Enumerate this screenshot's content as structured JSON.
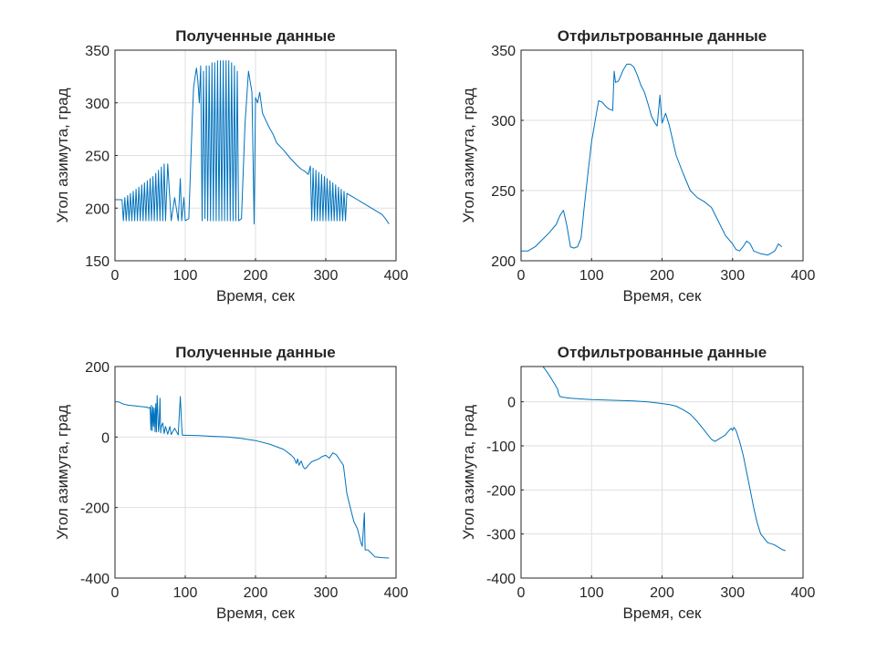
{
  "chart_data": [
    {
      "type": "line",
      "title": "Полученные данные",
      "xlabel": "Время, сек",
      "ylabel": "Угол азимута, град",
      "xlim": [
        0,
        400
      ],
      "ylim": [
        150,
        350
      ],
      "xticks": [
        0,
        100,
        200,
        300,
        400
      ],
      "yticks": [
        150,
        200,
        250,
        300,
        350
      ],
      "grid": true,
      "color": "#0072BD",
      "series": [
        {
          "x": [
            0,
            5,
            10,
            12,
            14,
            16,
            18,
            20,
            22,
            24,
            26,
            28,
            30,
            32,
            34,
            36,
            38,
            40,
            42,
            44,
            46,
            48,
            50,
            52,
            54,
            56,
            58,
            60,
            62,
            64,
            66,
            68,
            70,
            72,
            75,
            80,
            85,
            90,
            93,
            95,
            98,
            100,
            105,
            110,
            112,
            114,
            116,
            118,
            120,
            122,
            124,
            126,
            128,
            130,
            132,
            134,
            136,
            138,
            140,
            142,
            144,
            146,
            148,
            150,
            152,
            154,
            156,
            158,
            160,
            162,
            164,
            166,
            168,
            170,
            172,
            174,
            176,
            180,
            185,
            190,
            195,
            198,
            200,
            203,
            206,
            210,
            215,
            220,
            225,
            230,
            240,
            250,
            260,
            265,
            270,
            275,
            278,
            280,
            282,
            284,
            286,
            288,
            290,
            292,
            294,
            296,
            298,
            300,
            302,
            304,
            306,
            308,
            310,
            312,
            314,
            316,
            318,
            320,
            322,
            324,
            326,
            328,
            330,
            335,
            340,
            345,
            350,
            355,
            360,
            365,
            370,
            375,
            380,
            385,
            390
          ],
          "y": [
            208,
            208,
            208,
            188,
            210,
            188,
            212,
            188,
            214,
            188,
            216,
            188,
            218,
            188,
            220,
            188,
            222,
            188,
            224,
            188,
            226,
            188,
            228,
            188,
            230,
            188,
            233,
            188,
            236,
            188,
            239,
            188,
            242,
            188,
            242,
            188,
            210,
            188,
            228,
            188,
            210,
            188,
            190,
            285,
            315,
            325,
            333,
            320,
            300,
            335,
            188,
            330,
            190,
            335,
            188,
            335,
            188,
            338,
            188,
            338,
            188,
            340,
            188,
            340,
            188,
            340,
            188,
            340,
            188,
            340,
            188,
            338,
            188,
            335,
            188,
            330,
            188,
            190,
            280,
            330,
            310,
            185,
            305,
            300,
            310,
            290,
            283,
            276,
            270,
            262,
            255,
            247,
            240,
            237,
            235,
            232,
            240,
            188,
            238,
            188,
            236,
            188,
            234,
            188,
            232,
            188,
            230,
            188,
            228,
            188,
            226,
            188,
            224,
            188,
            222,
            188,
            220,
            188,
            218,
            188,
            216,
            188,
            214,
            212,
            210,
            208,
            206,
            204,
            202,
            200,
            198,
            196,
            194,
            190,
            185
          ]
        }
      ]
    },
    {
      "type": "line",
      "title": "Отфильтрованные данные",
      "xlabel": "Время, сек",
      "ylabel": "Угол азимута, град",
      "xlim": [
        0,
        400
      ],
      "ylim": [
        200,
        350
      ],
      "xticks": [
        0,
        100,
        200,
        300,
        400
      ],
      "yticks": [
        200,
        250,
        300,
        350
      ],
      "grid": true,
      "color": "#0072BD",
      "series": [
        {
          "x": [
            0,
            10,
            20,
            30,
            40,
            50,
            55,
            60,
            65,
            70,
            75,
            80,
            85,
            90,
            95,
            100,
            110,
            115,
            120,
            125,
            130,
            132,
            134,
            138,
            140,
            145,
            150,
            155,
            160,
            165,
            170,
            175,
            180,
            185,
            190,
            193,
            197,
            200,
            205,
            210,
            220,
            230,
            240,
            250,
            260,
            270,
            280,
            290,
            300,
            305,
            310,
            315,
            320,
            325,
            330,
            335,
            340,
            350,
            360,
            365,
            370
          ],
          "y": [
            207,
            207,
            210,
            215,
            220,
            226,
            232,
            236,
            225,
            210,
            209,
            210,
            216,
            240,
            263,
            285,
            314,
            313,
            310,
            308,
            307,
            335,
            327,
            328,
            330,
            336,
            340,
            340,
            338,
            332,
            325,
            320,
            312,
            303,
            298,
            296,
            318,
            298,
            305,
            297,
            275,
            262,
            250,
            245,
            242,
            238,
            228,
            218,
            212,
            208,
            207,
            210,
            214,
            212,
            207,
            206,
            205,
            204,
            207,
            212,
            210
          ]
        }
      ]
    },
    {
      "type": "line",
      "title": "Полученные данные",
      "xlabel": "Время, сек",
      "ylabel": "Угол азимута, град",
      "xlim": [
        0,
        400
      ],
      "ylim": [
        -400,
        200
      ],
      "xticks": [
        0,
        100,
        200,
        300,
        400
      ],
      "yticks": [
        -400,
        -200,
        0,
        200
      ],
      "grid": true,
      "color": "#0072BD",
      "series": [
        {
          "x": [
            0,
            5,
            10,
            15,
            20,
            25,
            30,
            35,
            40,
            45,
            48,
            50,
            51,
            52,
            53,
            54,
            55,
            56,
            57,
            58,
            59,
            60,
            62,
            63,
            64,
            65,
            66,
            68,
            70,
            72,
            75,
            78,
            80,
            85,
            90,
            93,
            95,
            96,
            100,
            120,
            140,
            160,
            180,
            200,
            220,
            240,
            250,
            255,
            258,
            260,
            262,
            265,
            268,
            270,
            272,
            275,
            280,
            290,
            295,
            300,
            305,
            310,
            315,
            320,
            325,
            330,
            335,
            340,
            345,
            350,
            352,
            355,
            356,
            360,
            365,
            370,
            380,
            390
          ],
          "y": [
            100,
            100,
            95,
            92,
            90,
            89,
            88,
            87,
            86,
            85,
            82,
            85,
            20,
            90,
            18,
            85,
            30,
            82,
            15,
            95,
            14,
            118,
            15,
            40,
            110,
            12,
            30,
            40,
            10,
            30,
            8,
            30,
            7,
            25,
            6,
            115,
            30,
            5,
            5,
            4,
            2,
            0,
            -4,
            -10,
            -20,
            -35,
            -50,
            -60,
            -75,
            -62,
            -80,
            -68,
            -85,
            -90,
            -88,
            -80,
            -70,
            -62,
            -55,
            -52,
            -60,
            -45,
            -50,
            -65,
            -80,
            -160,
            -200,
            -240,
            -260,
            -300,
            -310,
            -215,
            -320,
            -320,
            -330,
            -340,
            -342,
            -343
          ]
        }
      ]
    },
    {
      "type": "line",
      "title": "Отфильтрованные данные",
      "xlabel": "Время, сек",
      "ylabel": "Угол азимута, град",
      "xlim": [
        0,
        400
      ],
      "ylim": [
        -400,
        80
      ],
      "xticks": [
        0,
        100,
        200,
        300,
        400
      ],
      "yticks": [
        -400,
        -300,
        -200,
        -100,
        0
      ],
      "grid": true,
      "color": "#0072BD",
      "series": [
        {
          "x": [
            30,
            35,
            40,
            45,
            50,
            52,
            53,
            55,
            60,
            70,
            80,
            100,
            120,
            140,
            160,
            170,
            180,
            190,
            200,
            210,
            220,
            230,
            240,
            250,
            260,
            270,
            275,
            280,
            290,
            295,
            298,
            300,
            302,
            305,
            310,
            315,
            320,
            325,
            330,
            335,
            340,
            345,
            350,
            355,
            360,
            365,
            370,
            375
          ],
          "y": [
            82,
            72,
            60,
            47,
            34,
            28,
            20,
            12,
            10,
            8,
            7,
            5,
            4,
            3,
            2,
            1,
            0,
            -2,
            -4,
            -6,
            -10,
            -18,
            -28,
            -45,
            -65,
            -85,
            -90,
            -85,
            -75,
            -65,
            -60,
            -65,
            -58,
            -65,
            -90,
            -120,
            -160,
            -200,
            -240,
            -275,
            -300,
            -310,
            -320,
            -322,
            -325,
            -330,
            -335,
            -338
          ]
        }
      ]
    }
  ]
}
